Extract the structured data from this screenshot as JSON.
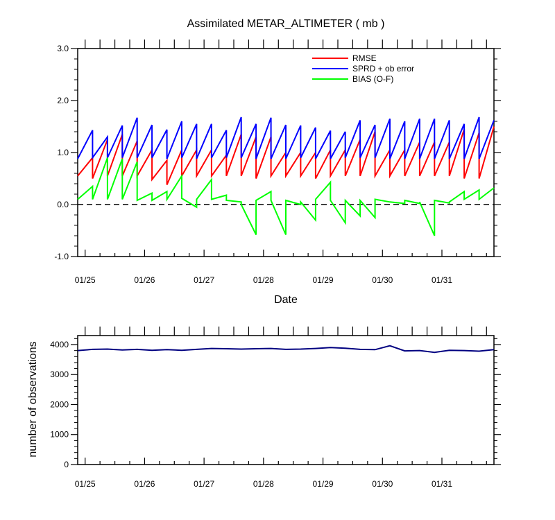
{
  "chart_data": [
    {
      "type": "line",
      "title": "Assimilated METAR_ALTIMETER ( mb )",
      "xlabel": "Date",
      "ylabel": "",
      "ylim": [
        -1.0,
        3.0
      ],
      "yticks": [
        "3.0",
        "2.0",
        "1.0",
        "0.0",
        "-1.0"
      ],
      "xlim": [
        24.875,
        31.875
      ],
      "xtick_labels": [
        "01/25",
        "01/26",
        "01/27",
        "01/28",
        "01/29",
        "01/30",
        "01/31"
      ],
      "xtick_values": [
        25,
        26,
        27,
        28,
        29,
        30,
        31
      ],
      "legend_position": "top-right",
      "reference_line": {
        "y": 0,
        "style": "dashed",
        "color": "#000000"
      },
      "series": [
        {
          "name": "RMSE",
          "color": "#ff0000",
          "points": [
            [
              24.875,
              0.55
            ],
            [
              25.125,
              0.9
            ],
            [
              25.125,
              0.5
            ],
            [
              25.375,
              1.25
            ],
            [
              25.375,
              0.55
            ],
            [
              25.625,
              1.35
            ],
            [
              25.625,
              0.55
            ],
            [
              25.875,
              1.22
            ],
            [
              25.875,
              0.55
            ],
            [
              26.125,
              1.05
            ],
            [
              26.125,
              0.48
            ],
            [
              26.375,
              0.85
            ],
            [
              26.375,
              0.38
            ],
            [
              26.625,
              1.05
            ],
            [
              26.625,
              0.55
            ],
            [
              26.875,
              1.05
            ],
            [
              26.875,
              0.55
            ],
            [
              27.125,
              1.05
            ],
            [
              27.125,
              0.55
            ],
            [
              27.375,
              0.95
            ],
            [
              27.375,
              0.55
            ],
            [
              27.625,
              1.35
            ],
            [
              27.625,
              0.55
            ],
            [
              27.875,
              1.3
            ],
            [
              27.875,
              0.5
            ],
            [
              28.125,
              1.3
            ],
            [
              28.125,
              0.55
            ],
            [
              28.375,
              1.0
            ],
            [
              28.375,
              0.55
            ],
            [
              28.625,
              1.0
            ],
            [
              28.625,
              0.55
            ],
            [
              28.875,
              1.0
            ],
            [
              28.875,
              0.5
            ],
            [
              29.125,
              1.05
            ],
            [
              29.125,
              0.55
            ],
            [
              29.375,
              1.05
            ],
            [
              29.375,
              0.55
            ],
            [
              29.625,
              1.25
            ],
            [
              29.625,
              0.55
            ],
            [
              29.875,
              1.4
            ],
            [
              29.875,
              0.55
            ],
            [
              30.125,
              1.05
            ],
            [
              30.125,
              0.55
            ],
            [
              30.375,
              1.05
            ],
            [
              30.375,
              0.55
            ],
            [
              30.625,
              1.2
            ],
            [
              30.625,
              0.55
            ],
            [
              30.875,
              1.2
            ],
            [
              30.875,
              0.55
            ],
            [
              31.125,
              1.2
            ],
            [
              31.125,
              0.55
            ],
            [
              31.375,
              1.45
            ],
            [
              31.375,
              0.5
            ],
            [
              31.625,
              1.38
            ],
            [
              31.625,
              0.5
            ],
            [
              31.875,
              1.5
            ]
          ]
        },
        {
          "name": "SPRD + ob error",
          "color": "#0000ff",
          "points": [
            [
              24.875,
              0.88
            ],
            [
              25.125,
              1.43
            ],
            [
              25.125,
              0.9
            ],
            [
              25.375,
              1.3
            ],
            [
              25.375,
              0.9
            ],
            [
              25.625,
              1.52
            ],
            [
              25.625,
              0.9
            ],
            [
              25.875,
              1.67
            ],
            [
              25.875,
              0.9
            ],
            [
              26.125,
              1.53
            ],
            [
              26.125,
              0.9
            ],
            [
              26.375,
              1.44
            ],
            [
              26.375,
              0.88
            ],
            [
              26.625,
              1.6
            ],
            [
              26.625,
              0.9
            ],
            [
              26.875,
              1.55
            ],
            [
              26.875,
              0.88
            ],
            [
              27.125,
              1.55
            ],
            [
              27.125,
              0.9
            ],
            [
              27.375,
              1.43
            ],
            [
              27.375,
              0.9
            ],
            [
              27.625,
              1.68
            ],
            [
              27.625,
              0.9
            ],
            [
              27.875,
              1.55
            ],
            [
              27.875,
              0.88
            ],
            [
              28.125,
              1.67
            ],
            [
              28.125,
              0.88
            ],
            [
              28.375,
              1.53
            ],
            [
              28.375,
              0.88
            ],
            [
              28.625,
              1.52
            ],
            [
              28.625,
              0.9
            ],
            [
              28.875,
              1.48
            ],
            [
              28.875,
              0.88
            ],
            [
              29.125,
              1.42
            ],
            [
              29.125,
              0.88
            ],
            [
              29.375,
              1.4
            ],
            [
              29.375,
              0.9
            ],
            [
              29.625,
              1.62
            ],
            [
              29.625,
              0.9
            ],
            [
              29.875,
              1.53
            ],
            [
              29.875,
              0.9
            ],
            [
              30.125,
              1.65
            ],
            [
              30.125,
              0.88
            ],
            [
              30.375,
              1.6
            ],
            [
              30.375,
              0.88
            ],
            [
              30.625,
              1.65
            ],
            [
              30.625,
              0.88
            ],
            [
              30.875,
              1.65
            ],
            [
              30.875,
              0.88
            ],
            [
              31.125,
              1.62
            ],
            [
              31.125,
              0.88
            ],
            [
              31.375,
              1.55
            ],
            [
              31.375,
              0.88
            ],
            [
              31.625,
              1.68
            ],
            [
              31.625,
              0.88
            ],
            [
              31.875,
              1.62
            ]
          ]
        },
        {
          "name": "BIAS (O-F)",
          "color": "#00ff00",
          "points": [
            [
              24.875,
              0.1
            ],
            [
              25.125,
              0.35
            ],
            [
              25.125,
              0.1
            ],
            [
              25.375,
              0.9
            ],
            [
              25.375,
              0.1
            ],
            [
              25.625,
              0.88
            ],
            [
              25.625,
              0.1
            ],
            [
              25.875,
              0.82
            ],
            [
              25.875,
              0.08
            ],
            [
              26.125,
              0.22
            ],
            [
              26.125,
              0.08
            ],
            [
              26.375,
              0.25
            ],
            [
              26.375,
              0.1
            ],
            [
              26.625,
              0.55
            ],
            [
              26.625,
              0.12
            ],
            [
              26.875,
              -0.05
            ],
            [
              26.875,
              0.1
            ],
            [
              27.125,
              0.48
            ],
            [
              27.125,
              0.1
            ],
            [
              27.375,
              0.18
            ],
            [
              27.375,
              0.08
            ],
            [
              27.625,
              0.05
            ],
            [
              27.625,
              0.0
            ],
            [
              27.875,
              -0.58
            ],
            [
              27.875,
              0.08
            ],
            [
              28.125,
              0.25
            ],
            [
              28.125,
              0.08
            ],
            [
              28.375,
              -0.58
            ],
            [
              28.375,
              0.08
            ],
            [
              28.625,
              0.0
            ],
            [
              28.625,
              0.05
            ],
            [
              28.875,
              -0.3
            ],
            [
              28.875,
              0.1
            ],
            [
              29.125,
              0.43
            ],
            [
              29.125,
              0.08
            ],
            [
              29.375,
              -0.35
            ],
            [
              29.375,
              0.08
            ],
            [
              29.625,
              -0.22
            ],
            [
              29.625,
              0.08
            ],
            [
              29.875,
              -0.25
            ],
            [
              29.875,
              0.1
            ],
            [
              30.125,
              0.05
            ],
            [
              30.125,
              0.05
            ],
            [
              30.375,
              0.02
            ],
            [
              30.375,
              0.08
            ],
            [
              30.625,
              0.02
            ],
            [
              30.625,
              0.05
            ],
            [
              30.875,
              -0.6
            ],
            [
              30.875,
              0.08
            ],
            [
              31.125,
              0.03
            ],
            [
              31.125,
              0.05
            ],
            [
              31.375,
              0.25
            ],
            [
              31.375,
              0.1
            ],
            [
              31.625,
              0.28
            ],
            [
              31.625,
              0.1
            ],
            [
              31.875,
              0.32
            ]
          ]
        }
      ]
    },
    {
      "type": "line",
      "title": "",
      "xlabel": "",
      "ylabel": "number of observations",
      "ylim": [
        0,
        4300
      ],
      "yticks": [
        "0",
        "1000",
        "2000",
        "3000",
        "4000"
      ],
      "xlim": [
        24.875,
        31.875
      ],
      "xtick_labels": [
        "01/25",
        "01/26",
        "01/27",
        "01/28",
        "01/29",
        "01/30",
        "01/31"
      ],
      "xtick_values": [
        25,
        26,
        27,
        28,
        29,
        30,
        31
      ],
      "series": [
        {
          "color": "#000080",
          "points": [
            [
              24.875,
              3800
            ],
            [
              25.125,
              3840
            ],
            [
              25.375,
              3850
            ],
            [
              25.625,
              3820
            ],
            [
              25.875,
              3840
            ],
            [
              26.125,
              3810
            ],
            [
              26.375,
              3830
            ],
            [
              26.625,
              3810
            ],
            [
              26.875,
              3840
            ],
            [
              27.125,
              3870
            ],
            [
              27.375,
              3860
            ],
            [
              27.625,
              3850
            ],
            [
              27.875,
              3860
            ],
            [
              28.125,
              3870
            ],
            [
              28.375,
              3840
            ],
            [
              28.625,
              3850
            ],
            [
              28.875,
              3870
            ],
            [
              29.125,
              3900
            ],
            [
              29.375,
              3880
            ],
            [
              29.625,
              3840
            ],
            [
              29.875,
              3830
            ],
            [
              30.125,
              3960
            ],
            [
              30.375,
              3790
            ],
            [
              30.625,
              3800
            ],
            [
              30.875,
              3740
            ],
            [
              31.125,
              3810
            ],
            [
              31.375,
              3800
            ],
            [
              31.625,
              3780
            ],
            [
              31.875,
              3830
            ]
          ]
        }
      ]
    }
  ]
}
